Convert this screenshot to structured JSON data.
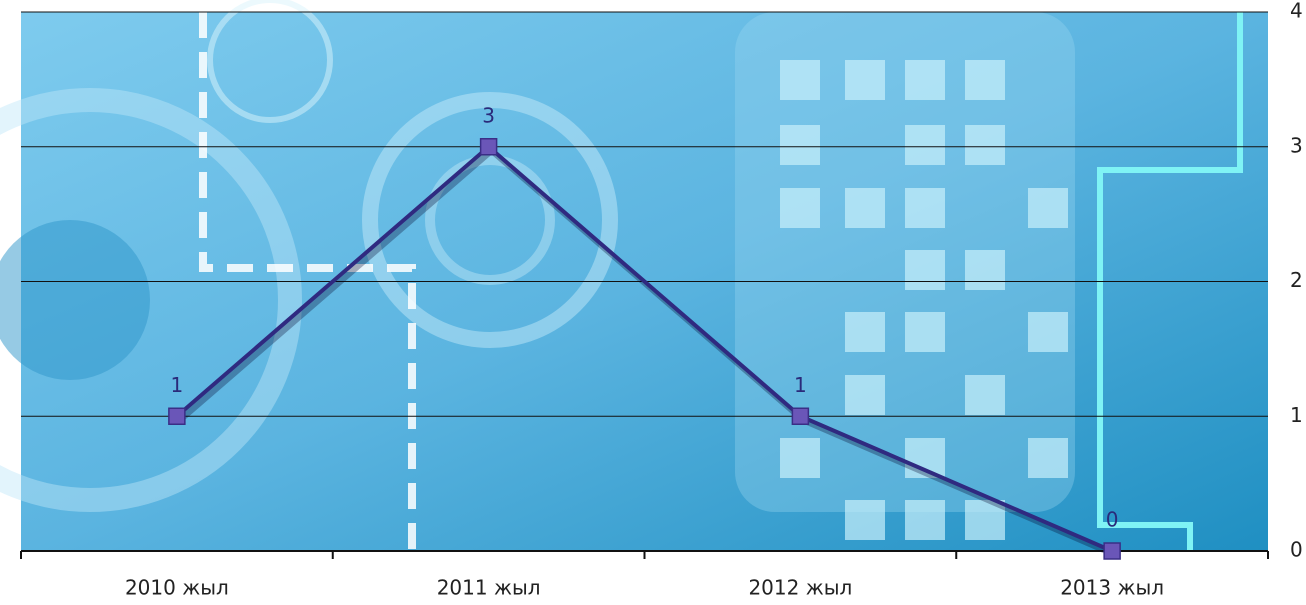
{
  "chart_data": {
    "type": "line",
    "categories": [
      "2010 жыл",
      "2011 жыл",
      "2012 жыл",
      "2013 жыл"
    ],
    "values": [
      1,
      3,
      1,
      0
    ],
    "color": "#2f2a80",
    "ylim": [
      0,
      4
    ],
    "yticks": [
      0,
      1,
      2,
      3,
      4
    ],
    "grid": true
  }
}
